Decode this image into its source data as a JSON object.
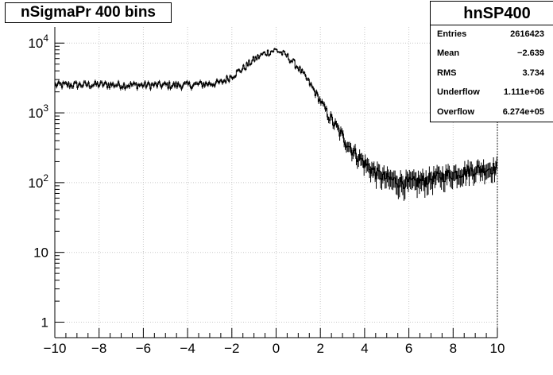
{
  "title": "nSigmaPr 400 bins",
  "stats_box": {
    "name": "hnSP400",
    "rows": [
      {
        "label": "Entries",
        "value": "2616423"
      },
      {
        "label": "Mean",
        "value": "−2.639"
      },
      {
        "label": "RMS",
        "value": "3.734"
      },
      {
        "label": "Underflow",
        "value": "1.111e+06"
      },
      {
        "label": "Overflow",
        "value": "6.274e+05"
      }
    ]
  },
  "chart_data": {
    "type": "histogram",
    "title": "nSigmaPr 400 bins",
    "xlim": [
      -10,
      10
    ],
    "ylim": [
      0.6,
      17000
    ],
    "yscale": "log",
    "grid": true,
    "x_ticks": [
      -10,
      -8,
      -6,
      -4,
      -2,
      0,
      2,
      4,
      6,
      8,
      10
    ],
    "x_tick_labels": [
      "−10",
      "−8",
      "−6",
      "−4",
      "−2",
      "0",
      "2",
      "4",
      "6",
      "8",
      "10"
    ],
    "y_ticks": [
      1,
      10,
      100,
      1000,
      10000
    ],
    "y_tick_labels": [
      "1",
      "10",
      "10^2",
      "10^3",
      "10^4"
    ],
    "bins": 400,
    "approx_profile": [
      {
        "x": -10,
        "y": 2500
      },
      {
        "x": -8,
        "y": 2550
      },
      {
        "x": -6,
        "y": 2500
      },
      {
        "x": -4,
        "y": 2500
      },
      {
        "x": -2.5,
        "y": 2700
      },
      {
        "x": -1.5,
        "y": 4300
      },
      {
        "x": -1.0,
        "y": 5800
      },
      {
        "x": -0.5,
        "y": 7200
      },
      {
        "x": 0.0,
        "y": 8000
      },
      {
        "x": 0.5,
        "y": 6500
      },
      {
        "x": 1.0,
        "y": 4500
      },
      {
        "x": 1.5,
        "y": 2700
      },
      {
        "x": 2.0,
        "y": 1500
      },
      {
        "x": 2.5,
        "y": 800
      },
      {
        "x": 3.0,
        "y": 460
      },
      {
        "x": 3.5,
        "y": 280
      },
      {
        "x": 4.0,
        "y": 190
      },
      {
        "x": 4.5,
        "y": 140
      },
      {
        "x": 5.0,
        "y": 115
      },
      {
        "x": 5.5,
        "y": 105
      },
      {
        "x": 6.0,
        "y": 100
      },
      {
        "x": 6.5,
        "y": 105
      },
      {
        "x": 7.0,
        "y": 115
      },
      {
        "x": 7.5,
        "y": 125
      },
      {
        "x": 8.0,
        "y": 135
      },
      {
        "x": 8.5,
        "y": 145
      },
      {
        "x": 9.0,
        "y": 155
      },
      {
        "x": 9.5,
        "y": 160
      },
      {
        "x": 10.0,
        "y": 165
      }
    ],
    "series": [
      {
        "values": []
      }
    ]
  },
  "colors": {
    "line": "#000000",
    "grid": "#c8c8c8",
    "background": "#ffffff"
  }
}
